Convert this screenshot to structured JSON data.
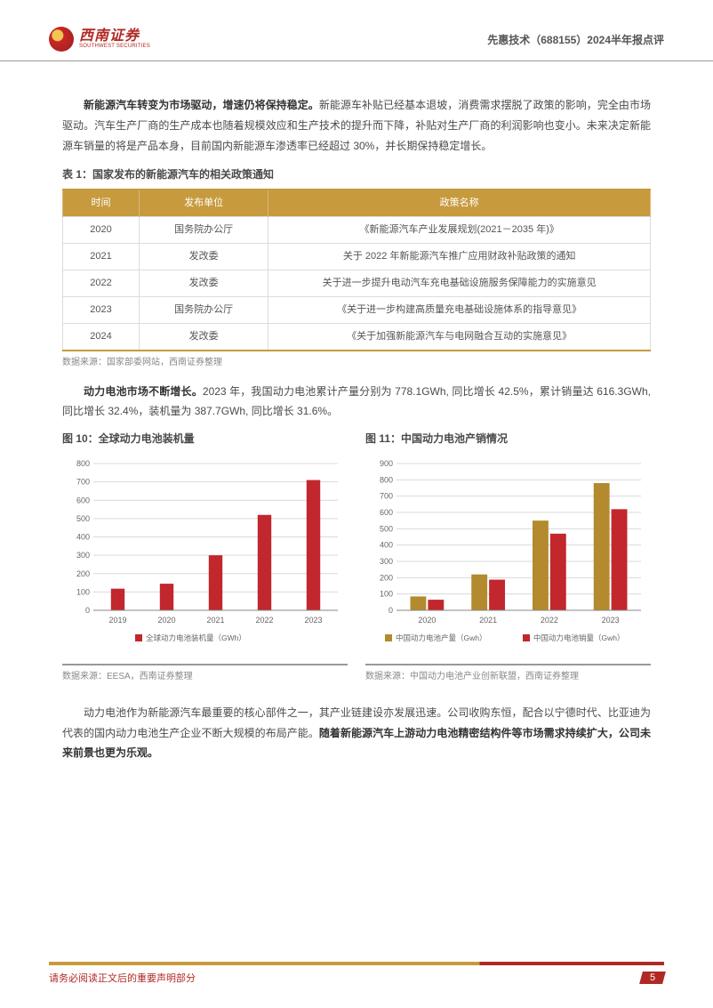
{
  "header": {
    "logo_cn": "西南证券",
    "logo_en": "SOUTHWEST SECURITIES",
    "title_company": "先惠技术（688155）2024半年报点评"
  },
  "paragraph1": {
    "lead_bold": "新能源汽车转变为市场驱动，增速仍将保持稳定。",
    "body": "新能源车补贴已经基本退坡，消费需求摆脱了政策的影响，完全由市场驱动。汽车生产厂商的生产成本也随着规模效应和生产技术的提升而下降，补贴对生产厂商的利润影响也变小。未来决定新能源车销量的将是产品本身，目前国内新能源车渗透率已经超过 30%，并长期保持稳定增长。"
  },
  "table1": {
    "title": "表 1：国家发布的新能源汽车的相关政策通知",
    "headers": [
      "时间",
      "发布单位",
      "政策名称"
    ],
    "rows": [
      [
        "2020",
        "国务院办公厅",
        "《新能源汽车产业发展规划(2021－2035 年)》"
      ],
      [
        "2021",
        "发改委",
        "关于 2022 年新能源汽车推广应用财政补贴政策的通知"
      ],
      [
        "2022",
        "发改委",
        "关于进一步提升电动汽车充电基础设施服务保障能力的实施意见"
      ],
      [
        "2023",
        "国务院办公厅",
        "《关于进一步构建高质量充电基础设施体系的指导意见》"
      ],
      [
        "2024",
        "发改委",
        "《关于加强新能源汽车与电网融合互动的实施意见》"
      ]
    ],
    "header_bg": "#c79a3e",
    "header_text_color": "#ffffff",
    "source": "数据来源：国家部委网站，西南证券整理",
    "col_widths": [
      "13%",
      "22%",
      "65%"
    ]
  },
  "paragraph2": {
    "lead_bold": "动力电池市场不断增长。",
    "body": "2023 年，我国动力电池累计产量分别为 778.1GWh,  同比增长 42.5%，累计销量达 616.3GWh, 同比增长 32.4%，装机量为 387.7GWh, 同比增长 31.6%。"
  },
  "chart10": {
    "title": "图 10：全球动力电池装机量",
    "type": "bar",
    "categories": [
      "2019",
      "2020",
      "2021",
      "2022",
      "2023"
    ],
    "values": [
      118,
      145,
      300,
      520,
      710
    ],
    "bar_color": "#c1272d",
    "ylim": [
      0,
      800
    ],
    "ytick_step": 100,
    "yticks": [
      0,
      100,
      200,
      300,
      400,
      500,
      600,
      700,
      800
    ],
    "grid_color": "#d9d9d9",
    "background_color": "#ffffff",
    "legend_label": "全球动力电池装机量（GWh）",
    "legend_marker_color": "#c1272d",
    "axis_font_size": 9,
    "legend_font_size": 8.5,
    "bar_width": 0.28,
    "source": "数据来源：EESA，西南证券整理"
  },
  "chart11": {
    "title": "图 11：中国动力电池产销情况",
    "type": "grouped-bar",
    "categories": [
      "2020",
      "2021",
      "2022",
      "2023"
    ],
    "series": [
      {
        "label": "中国动力电池产量（Gwh）",
        "color": "#b38a2e",
        "values": [
          85,
          220,
          550,
          780
        ]
      },
      {
        "label": "中国动力电池销量（Gwh）",
        "color": "#c1272d",
        "values": [
          65,
          188,
          470,
          620
        ]
      }
    ],
    "ylim": [
      0,
      900
    ],
    "ytick_step": 100,
    "yticks": [
      0,
      100,
      200,
      300,
      400,
      500,
      600,
      700,
      800,
      900
    ],
    "grid_color": "#d9d9d9",
    "background_color": "#ffffff",
    "axis_font_size": 9,
    "legend_font_size": 8.5,
    "bar_width": 0.26,
    "source": "数据来源：中国动力电池产业创新联盟，西南证券整理"
  },
  "paragraph3": {
    "prefix": "动力电池作为新能源汽车最重要的核心部件之一，其产业链建设亦发展迅速。公司收购东恒，配合以宁德时代、比亚迪为代表的国内动力电池生产企业不断大规模的布局产能。",
    "bold": "随着新能源汽车上游动力电池精密结构件等市场需求持续扩大，公司未来前景也更为乐观。"
  },
  "footer": {
    "disclaimer": "请务必阅读正文后的重要声明部分",
    "page_number": "5",
    "bar_color_left": "#c79a3e",
    "bar_color_right": "#b02925",
    "text_color": "#b02925"
  }
}
